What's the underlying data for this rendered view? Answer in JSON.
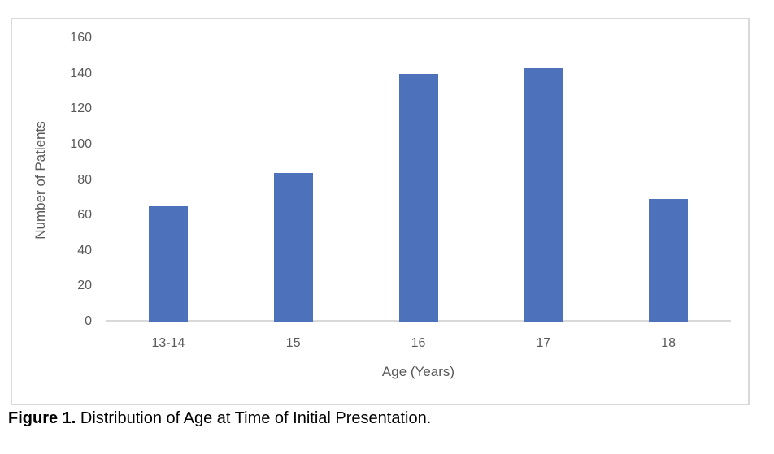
{
  "figure": {
    "caption_label": "Figure 1.",
    "caption_text": " Distribution of Age at Time of Initial Presentation."
  },
  "chart_data": {
    "type": "bar",
    "title": "",
    "categories": [
      "13-14",
      "15",
      "16",
      "17",
      "18"
    ],
    "values": [
      65,
      84,
      140,
      143,
      69
    ],
    "xlabel": "Age (Years)",
    "ylabel": "Number of Patients",
    "ylim": [
      0,
      160
    ],
    "yticks": [
      0,
      20,
      40,
      60,
      80,
      100,
      120,
      140,
      160
    ],
    "grid": false,
    "legend": false,
    "bar_color": "#4d71bb",
    "axis_line_color": "#d9d9d9",
    "tick_label_color": "#595959"
  }
}
